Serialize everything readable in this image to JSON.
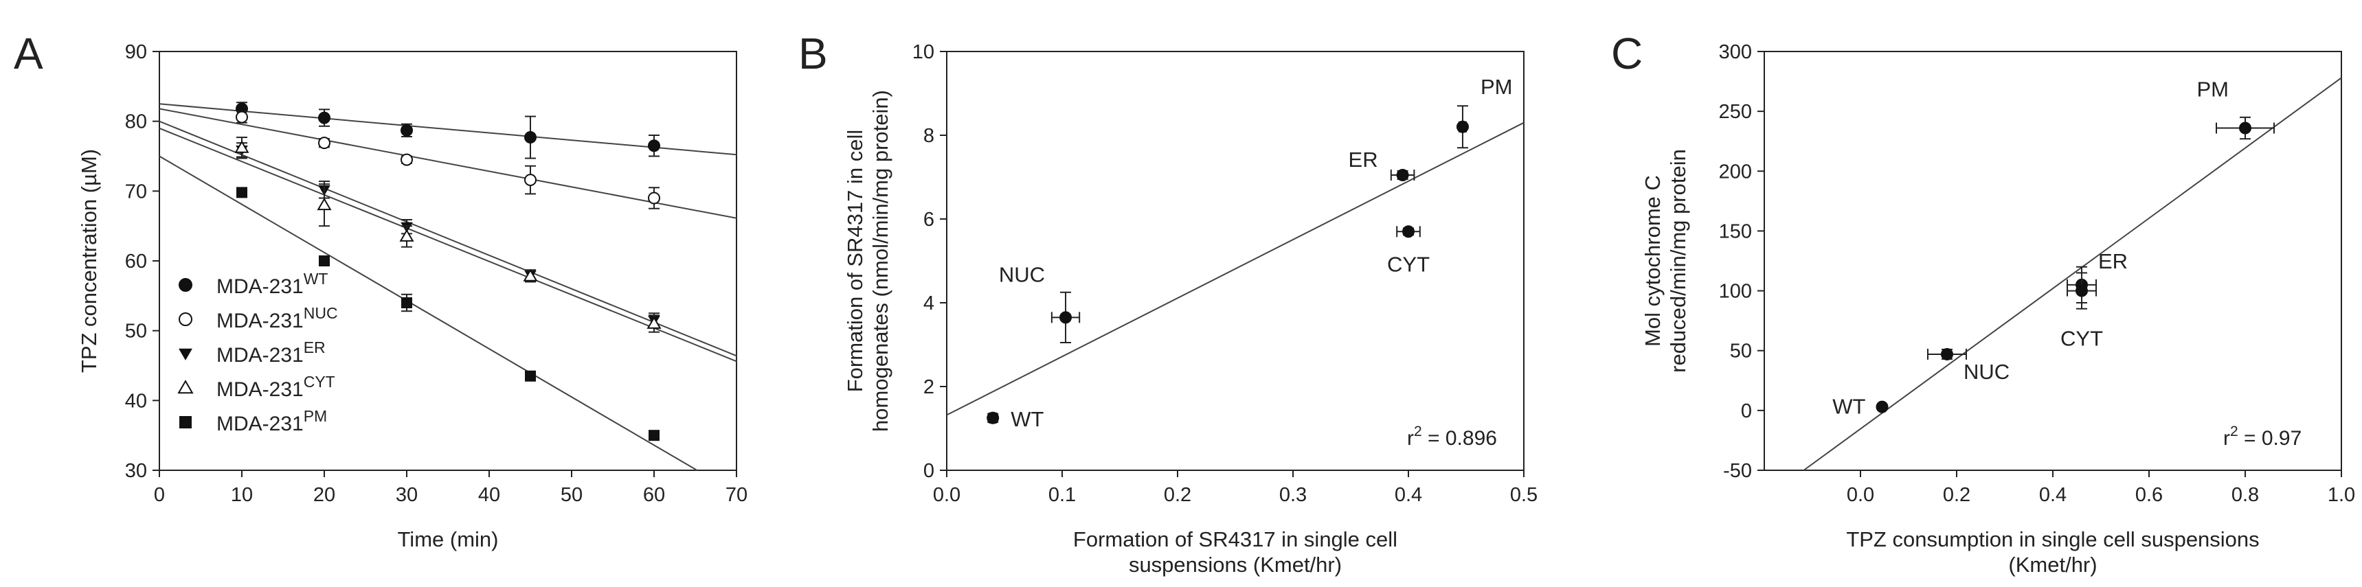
{
  "colors": {
    "ink": "#222222",
    "fit_line": "#444444",
    "marker": "#111111",
    "background": "#ffffff"
  },
  "chart_data": [
    {
      "panel": "A",
      "type": "scatter",
      "title": "",
      "xlabel": "Time (min)",
      "ylabel": "TPZ concentration (µM)",
      "xlim": [
        0,
        70
      ],
      "ylim": [
        30,
        90
      ],
      "xticks": [
        "0",
        "10",
        "20",
        "30",
        "40",
        "50",
        "60",
        "70"
      ],
      "yticks": [
        "30",
        "40",
        "50",
        "60",
        "70",
        "80",
        "90"
      ],
      "legend_position": "left",
      "series": [
        {
          "name": "MDA-231WT",
          "label_base": "MDA-231",
          "label_sup": "WT",
          "marker": "circle-filled",
          "x": [
            10,
            20,
            30,
            45,
            60
          ],
          "y": [
            81.8,
            80.5,
            78.7,
            77.7,
            76.5
          ],
          "err": [
            0.9,
            1.2,
            0.9,
            3.0,
            1.5
          ],
          "fit": [
            82.5,
            -0.104
          ]
        },
        {
          "name": "MDA-231NUC",
          "label_base": "MDA-231",
          "label_sup": "NUC",
          "marker": "circle-open",
          "x": [
            10,
            20,
            30,
            45,
            60
          ],
          "y": [
            80.6,
            76.9,
            74.5,
            71.6,
            69.0
          ],
          "err": [
            0.8,
            0.6,
            0.5,
            2.0,
            1.5
          ],
          "fit": [
            81.8,
            -0.224
          ]
        },
        {
          "name": "MDA-231ER",
          "label_base": "MDA-231",
          "label_sup": "ER",
          "marker": "triangle-down-filled",
          "x": [
            10,
            20,
            30,
            45,
            60
          ],
          "y": [
            75.9,
            70.2,
            64.9,
            58.0,
            51.5
          ],
          "err": [
            1.0,
            1.2,
            1.0,
            0.7,
            1.0
          ],
          "fit": [
            80.0,
            -0.48
          ]
        },
        {
          "name": "MDA-231CYT",
          "label_base": "MDA-231",
          "label_sup": "CYT",
          "marker": "triangle-up-open",
          "x": [
            10,
            20,
            30,
            45,
            60
          ],
          "y": [
            76.2,
            68.0,
            63.5,
            57.8,
            51.0
          ],
          "err": [
            1.5,
            3.0,
            1.5,
            0.8,
            1.2
          ],
          "fit": [
            79.0,
            -0.477
          ]
        },
        {
          "name": "MDA-231PM",
          "label_base": "MDA-231",
          "label_sup": "PM",
          "marker": "square-filled",
          "x": [
            10,
            20,
            30,
            45,
            60
          ],
          "y": [
            69.8,
            60.0,
            54.0,
            43.5,
            35.0
          ],
          "err": [
            0.5,
            0.4,
            1.2,
            0.6,
            0.5
          ],
          "fit": [
            75.0,
            -0.69
          ]
        }
      ]
    },
    {
      "panel": "B",
      "type": "scatter",
      "title": "",
      "xlabel_lines": [
        "Formation of SR4317 in single cell",
        "suspensions (Kmet/hr)"
      ],
      "ylabel_lines": [
        "Formation of SR4317 in cell",
        "homogenates (nmol/min/mg protein)"
      ],
      "xlim": [
        0,
        0.5
      ],
      "ylim": [
        0,
        10
      ],
      "xticks": [
        "0.0",
        "0.1",
        "0.2",
        "0.3",
        "0.4",
        "0.5"
      ],
      "yticks": [
        "0",
        "2",
        "4",
        "6",
        "8",
        "10"
      ],
      "points": [
        {
          "label": "WT",
          "x": 0.04,
          "y": 1.25,
          "xerr": 0.003,
          "yerr": 0.1
        },
        {
          "label": "NUC",
          "x": 0.103,
          "y": 3.65,
          "xerr": 0.012,
          "yerr": 0.6
        },
        {
          "label": "ER",
          "x": 0.395,
          "y": 7.05,
          "xerr": 0.01,
          "yerr": 0.1
        },
        {
          "label": "CYT",
          "x": 0.4,
          "y": 5.7,
          "xerr": 0.01,
          "yerr": 0.08
        },
        {
          "label": "PM",
          "x": 0.447,
          "y": 8.2,
          "xerr": 0.003,
          "yerr": 0.5
        }
      ],
      "fit": {
        "x": [
          0,
          0.5
        ],
        "y": [
          1.32,
          8.3
        ]
      },
      "annotation": {
        "prefix": "r",
        "sup": "2",
        "text": " = 0.896"
      }
    },
    {
      "panel": "C",
      "type": "scatter",
      "title": "",
      "xlabel_lines": [
        "TPZ consumption in single cell suspensions",
        "(Kmet/hr)"
      ],
      "ylabel_lines": [
        "Mol cytochrome C",
        "reduced/min/mg protein"
      ],
      "xlim": [
        -0.2,
        1.0
      ],
      "ylim": [
        -50,
        300
      ],
      "xticks": [
        "0.0",
        "0.2",
        "0.4",
        "0.6",
        "0.8",
        "1.0"
      ],
      "yticks": [
        "-50",
        "0",
        "50",
        "100",
        "150",
        "200",
        "250",
        "300"
      ],
      "points": [
        {
          "label": "WT",
          "x": 0.045,
          "y": 3,
          "xerr": 0.005,
          "yerr": 2
        },
        {
          "label": "NUC",
          "x": 0.18,
          "y": 47,
          "xerr": 0.04,
          "yerr": 4
        },
        {
          "label": "ER",
          "x": 0.46,
          "y": 105,
          "xerr": 0.03,
          "yerr": 15
        },
        {
          "label": "CYT",
          "x": 0.46,
          "y": 100,
          "xerr": 0.03,
          "yerr": 15
        },
        {
          "label": "PM",
          "x": 0.8,
          "y": 236,
          "xerr": 0.06,
          "yerr": 9
        }
      ],
      "fit": {
        "x": [
          -0.118,
          1.0
        ],
        "y": [
          -50,
          278
        ]
      },
      "annotation": {
        "prefix": "r",
        "sup": "2",
        "text": " = 0.97"
      }
    }
  ]
}
